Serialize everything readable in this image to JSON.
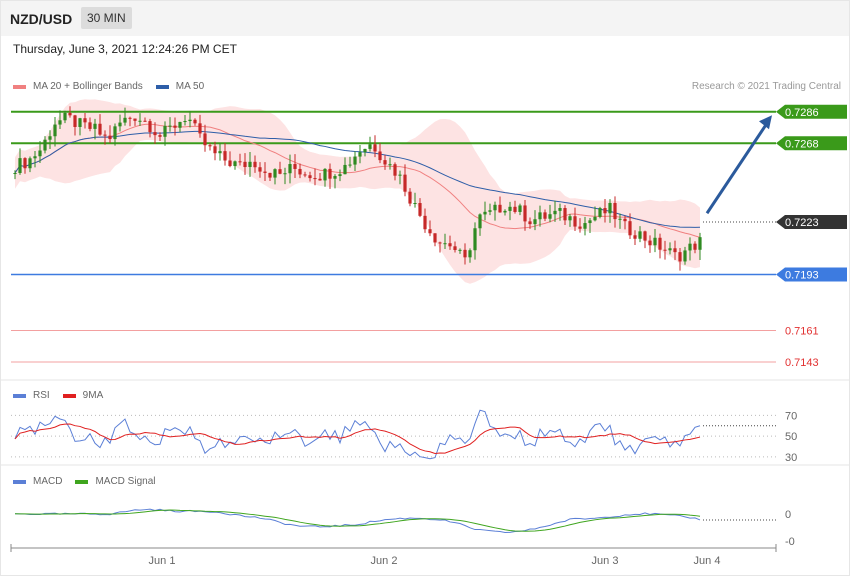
{
  "header": {
    "pair": "NZD/USD",
    "timeframe": "30 MIN",
    "datetime": "Thursday, June 3, 2021 12:24:26 PM CET"
  },
  "legend": {
    "main": [
      {
        "label": "MA 20 + Bollinger Bands",
        "color": "#f08080"
      },
      {
        "label": "MA 50",
        "color": "#2e5ea8"
      }
    ],
    "rsi": [
      {
        "label": "RSI",
        "color": "#5b7fd6"
      },
      {
        "label": "9MA",
        "color": "#e02020"
      }
    ],
    "macd": [
      {
        "label": "MACD",
        "color": "#5b7fd6"
      },
      {
        "label": "MACD Signal",
        "color": "#3fa51e"
      }
    ]
  },
  "copyright": "Research © 2021 Trading Central",
  "chart_data": {
    "type": "candlestick",
    "xlabels": [
      "Jun 1",
      "Jun 2",
      "Jun 3",
      "Jun 4"
    ],
    "ylim": [
      0.7135,
      0.7295
    ],
    "last_price": "0.7223",
    "levels": [
      {
        "label": "0.7286",
        "value": 0.7286,
        "kind": "resistance",
        "color": "#3a9a1a"
      },
      {
        "label": "0.7268",
        "value": 0.7268,
        "kind": "resistance",
        "color": "#3a9a1a"
      },
      {
        "label": "0.7193",
        "value": 0.7193,
        "kind": "pivot",
        "color": "#3d7be0"
      },
      {
        "label": "0.7161",
        "value": 0.7161,
        "kind": "support",
        "color": "#e23030"
      },
      {
        "label": "0.7143",
        "value": 0.7143,
        "kind": "support",
        "color": "#e23030"
      }
    ],
    "target_arrow": {
      "from": 0.7228,
      "to": 0.7284
    },
    "price_path": [
      0.7255,
      0.7258,
      0.7265,
      0.728,
      0.7282,
      0.7278,
      0.7276,
      0.727,
      0.728,
      0.7284,
      0.728,
      0.7272,
      0.7278,
      0.7284,
      0.727,
      0.7262,
      0.7258,
      0.7255,
      0.7258,
      0.7252,
      0.725,
      0.7254,
      0.7251,
      0.725,
      0.7252,
      0.7255,
      0.7264,
      0.7268,
      0.7258,
      0.725,
      0.7235,
      0.7222,
      0.7212,
      0.721,
      0.72,
      0.7225,
      0.7228,
      0.7233,
      0.723,
      0.7224,
      0.7226,
      0.7228,
      0.7225,
      0.7222,
      0.7227,
      0.723,
      0.722,
      0.7217,
      0.7212,
      0.7208,
      0.7203,
      0.7208,
      0.7213
    ],
    "rsi": {
      "levels": [
        70,
        50,
        30
      ],
      "ylim": [
        25,
        80
      ]
    },
    "macd": {
      "levels": [
        "0",
        "-0"
      ]
    }
  }
}
